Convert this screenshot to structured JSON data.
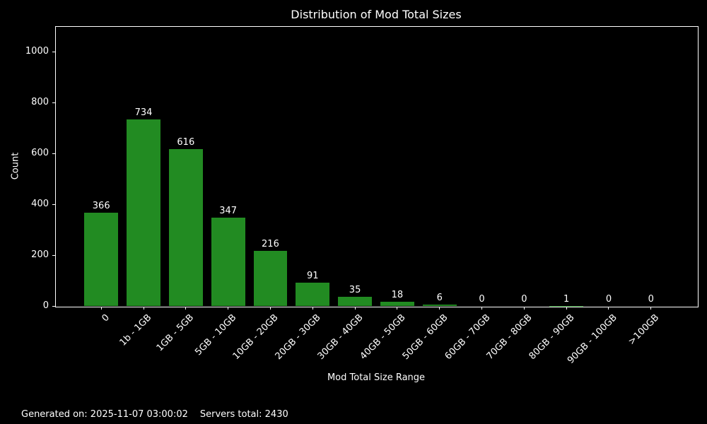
{
  "chart_data": {
    "type": "bar",
    "title": "Distribution of Mod Total Sizes",
    "xlabel": "Mod Total Size Range",
    "ylabel": "Count",
    "categories": [
      "0",
      "1b - 1GB",
      "1GB - 5GB",
      "5GB - 10GB",
      "10GB - 20GB",
      "20GB - 30GB",
      "30GB - 40GB",
      "40GB - 50GB",
      "50GB - 60GB",
      "60GB - 70GB",
      "70GB - 80GB",
      "80GB - 90GB",
      "90GB - 100GB",
      ">100GB"
    ],
    "values": [
      366,
      734,
      616,
      347,
      216,
      91,
      35,
      18,
      6,
      0,
      0,
      1,
      0,
      0
    ],
    "ylim": [
      0,
      1100
    ],
    "yticks": [
      0,
      200,
      400,
      600,
      800,
      1000
    ],
    "bar_color": "#228b22",
    "background_color": "#000000",
    "text_color": "#ffffff",
    "axis_color": "#ffffff",
    "grid": false,
    "legend": false,
    "x_tick_rotation_deg": 45
  },
  "footer": {
    "generated_on": "Generated on: 2025-11-07 03:00:02",
    "servers_total": "Servers total: 2430"
  }
}
